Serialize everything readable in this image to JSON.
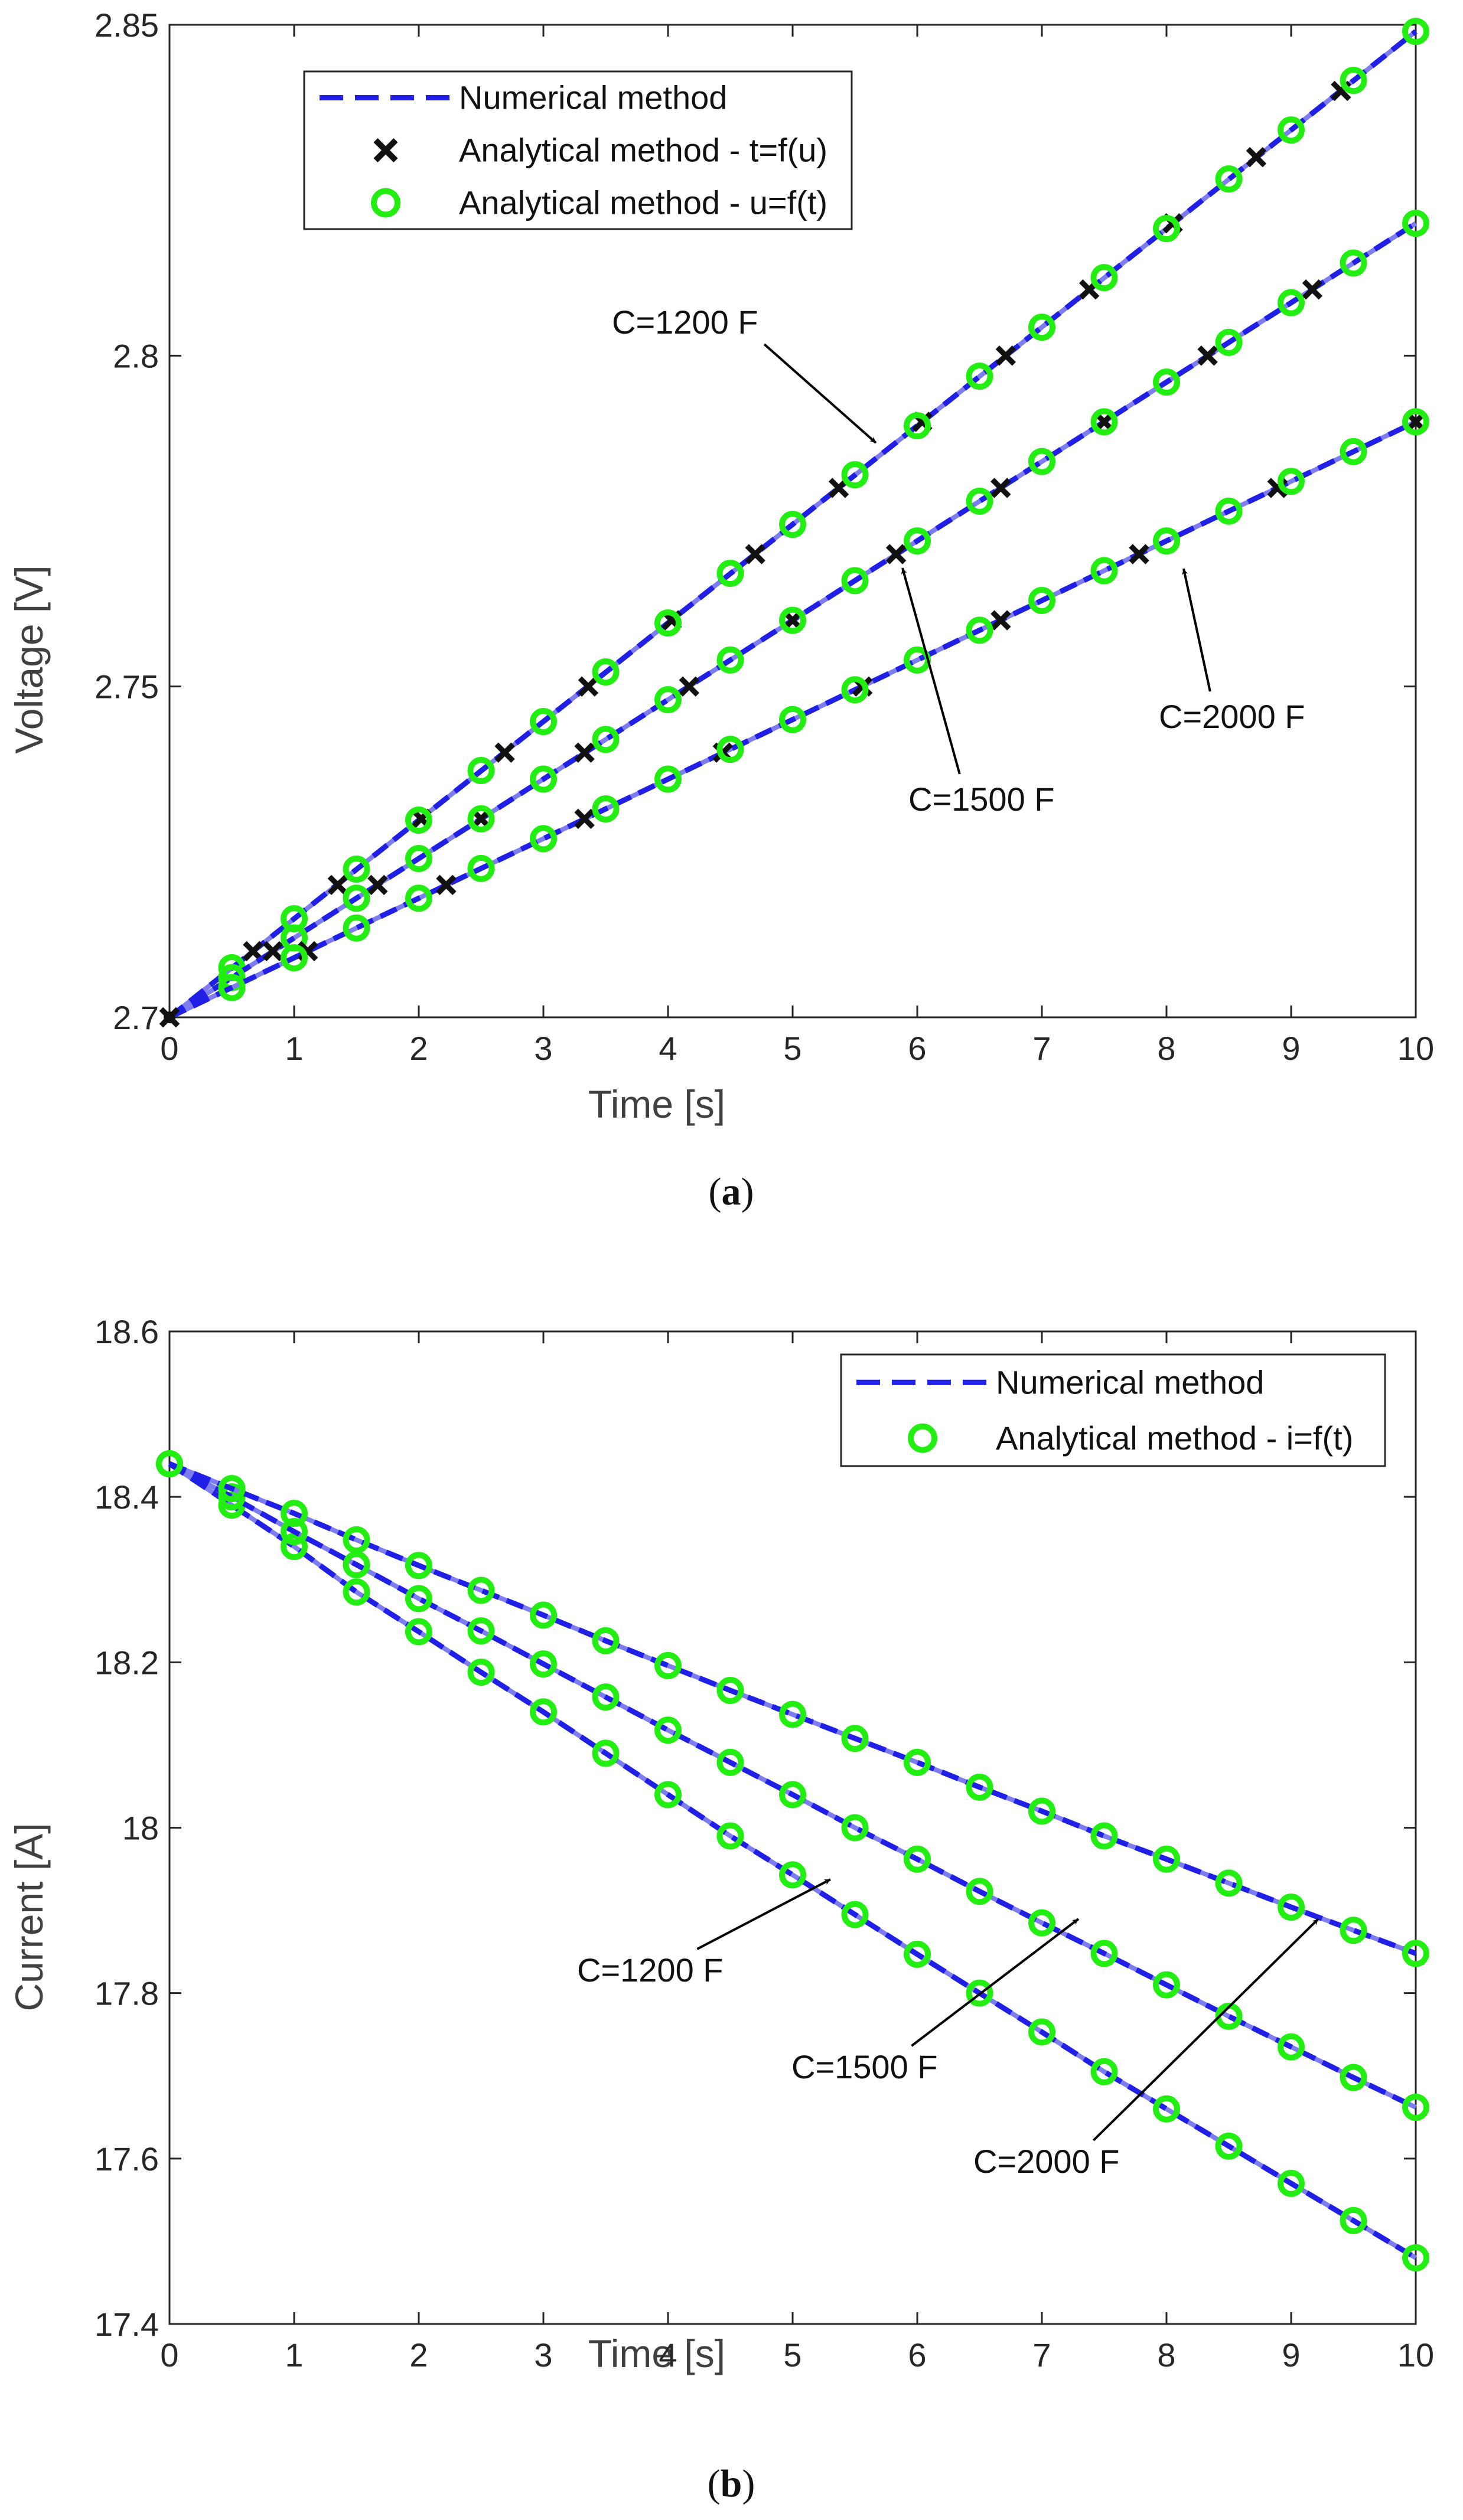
{
  "colors": {
    "numerical": "#1f1fe6",
    "analytical_t": "#111111",
    "analytical_u": "#22ee11",
    "axis": "#262626",
    "label": "#404040"
  },
  "chart_data": [
    {
      "type": "line",
      "panel_label": "a",
      "xlabel": "Time [s]",
      "ylabel": "Voltage [V]",
      "xlim": [
        0,
        10
      ],
      "ylim": [
        2.7,
        2.85
      ],
      "xticks": [
        0,
        1,
        2,
        3,
        4,
        5,
        6,
        7,
        8,
        9,
        10
      ],
      "yticks": [
        2.7,
        2.75,
        2.8,
        2.85
      ],
      "ytick_labels": [
        "2.7",
        "2.75",
        "2.8",
        "2.85"
      ],
      "grid": false,
      "legend_position": "top-left",
      "legend": [
        {
          "label": "Numerical method",
          "style": "dash"
        },
        {
          "label": "Analytical method - t=f(u)",
          "style": "cross"
        },
        {
          "label": "Analytical method - u=f(t)",
          "style": "circle"
        }
      ],
      "series": [
        {
          "name": "C=1200 F",
          "numerical": {
            "x": [
              0,
              10
            ],
            "y": [
              2.7,
              2.849
            ]
          },
          "analytical_t": {
            "x": [
              0,
              0.67,
              1.35,
              2.02,
              2.69,
              3.36,
              4.03,
              4.7,
              5.37,
              6.04,
              6.71,
              7.38,
              8.05,
              8.72,
              9.4
            ],
            "y": [
              2.7,
              2.71,
              2.72,
              2.73,
              2.74,
              2.75,
              2.76,
              2.77,
              2.78,
              2.79,
              2.8,
              2.81,
              2.82,
              2.83,
              2.84
            ]
          },
          "analytical_u": {
            "x": [
              0.5,
              1,
              1.5,
              2,
              2.5,
              3,
              3.5,
              4,
              4.5,
              5,
              5.5,
              6,
              6.5,
              7,
              7.5,
              8,
              8.5,
              9,
              9.5,
              10
            ],
            "y": [
              2.7075,
              2.7149,
              2.7224,
              2.7298,
              2.7373,
              2.7447,
              2.7522,
              2.7596,
              2.7671,
              2.7745,
              2.782,
              2.7894,
              2.7969,
              2.8043,
              2.8118,
              2.8192,
              2.8267,
              2.8341,
              2.8416,
              2.849
            ]
          }
        },
        {
          "name": "C=1500 F",
          "numerical": {
            "x": [
              0,
              10
            ],
            "y": [
              2.7,
              2.82
            ]
          },
          "analytical_t": {
            "x": [
              0,
              0.83,
              1.67,
              2.5,
              3.33,
              4.17,
              5.0,
              5.83,
              6.67,
              7.5,
              8.33,
              9.17
            ],
            "y": [
              2.7,
              2.71,
              2.72,
              2.73,
              2.74,
              2.75,
              2.76,
              2.77,
              2.78,
              2.79,
              2.8,
              2.81
            ]
          },
          "analytical_u": {
            "x": [
              0.5,
              1,
              1.5,
              2,
              2.5,
              3,
              3.5,
              4,
              4.5,
              5,
              5.5,
              6,
              6.5,
              7,
              7.5,
              8,
              8.5,
              9,
              9.5,
              10
            ],
            "y": [
              2.706,
              2.712,
              2.718,
              2.724,
              2.73,
              2.736,
              2.742,
              2.748,
              2.754,
              2.76,
              2.766,
              2.772,
              2.778,
              2.784,
              2.79,
              2.796,
              2.802,
              2.808,
              2.814,
              2.82
            ]
          }
        },
        {
          "name": "C=2000 F",
          "numerical": {
            "x": [
              0,
              10
            ],
            "y": [
              2.7,
              2.79
            ]
          },
          "analytical_t": {
            "x": [
              0,
              1.11,
              2.22,
              3.33,
              4.44,
              5.56,
              6.67,
              7.78,
              8.89,
              10.0
            ],
            "y": [
              2.7,
              2.71,
              2.72,
              2.73,
              2.74,
              2.75,
              2.76,
              2.77,
              2.78,
              2.79
            ]
          },
          "analytical_u": {
            "x": [
              0.5,
              1,
              1.5,
              2,
              2.5,
              3,
              3.5,
              4,
              4.5,
              5,
              5.5,
              6,
              6.5,
              7,
              7.5,
              8,
              8.5,
              9,
              9.5,
              10
            ],
            "y": [
              2.7045,
              2.709,
              2.7135,
              2.718,
              2.7225,
              2.727,
              2.7315,
              2.736,
              2.7405,
              2.745,
              2.7495,
              2.754,
              2.7585,
              2.763,
              2.7675,
              2.772,
              2.7765,
              2.781,
              2.7855,
              2.79
            ]
          }
        }
      ],
      "annotations": [
        {
          "text": "C=1200 F",
          "x": 5.8,
          "y": 2.787
        },
        {
          "text": "C=1500 F",
          "x": 5.9,
          "y": 2.7705
        },
        {
          "text": "C=2000 F",
          "x": 8.1,
          "y": 2.7705
        }
      ]
    },
    {
      "type": "line",
      "panel_label": "b",
      "xlabel": "Time [s]",
      "ylabel": "Current [A]",
      "xlim": [
        0,
        10
      ],
      "ylim": [
        17.4,
        18.6
      ],
      "xticks": [
        0,
        1,
        2,
        3,
        4,
        5,
        6,
        7,
        8,
        9,
        10
      ],
      "yticks": [
        17.4,
        17.6,
        17.8,
        18,
        18.2,
        18.4,
        18.6
      ],
      "ytick_labels": [
        "17.4",
        "17.6",
        "17.8",
        "18",
        "18.2",
        "18.4",
        "18.6"
      ],
      "grid": false,
      "legend_position": "top-right",
      "legend": [
        {
          "label": "Numerical method",
          "style": "dash"
        },
        {
          "label": "Analytical method - i=f(t)",
          "style": "circle"
        }
      ],
      "series": [
        {
          "name": "C=1200 F",
          "numerical": {
            "x": [
              0,
              0.5,
              1,
              1.5,
              2,
              2.5,
              3,
              3.5,
              4,
              4.5,
              5,
              5.5,
              6,
              6.5,
              7,
              7.5,
              8,
              8.5,
              9,
              9.5,
              10
            ],
            "y": [
              18.44,
              18.39,
              18.34,
              18.285,
              18.237,
              18.188,
              18.14,
              18.09,
              18.04,
              17.99,
              17.943,
              17.895,
              17.847,
              17.8,
              17.753,
              17.705,
              17.66,
              17.615,
              17.57,
              17.525,
              17.48
            ]
          },
          "analytical": {
            "x": [
              0,
              0.5,
              1,
              1.5,
              2,
              2.5,
              3,
              3.5,
              4,
              4.5,
              5,
              5.5,
              6,
              6.5,
              7,
              7.5,
              8,
              8.5,
              9,
              9.5,
              10
            ],
            "y": [
              18.44,
              18.39,
              18.34,
              18.285,
              18.237,
              18.188,
              18.14,
              18.09,
              18.04,
              17.99,
              17.943,
              17.895,
              17.847,
              17.8,
              17.753,
              17.705,
              17.66,
              17.615,
              17.57,
              17.525,
              17.48
            ]
          }
        },
        {
          "name": "C=1500 F",
          "numerical": {
            "x": [
              0,
              0.5,
              1,
              1.5,
              2,
              2.5,
              3,
              3.5,
              4,
              4.5,
              5,
              5.5,
              6,
              6.5,
              7,
              7.5,
              8,
              8.5,
              9,
              9.5,
              10
            ],
            "y": [
              18.44,
              18.4,
              18.358,
              18.318,
              18.277,
              18.238,
              18.198,
              18.158,
              18.118,
              18.079,
              18.04,
              18.0,
              17.962,
              17.923,
              17.885,
              17.848,
              17.81,
              17.772,
              17.735,
              17.698,
              17.662
            ]
          },
          "analytical": {
            "x": [
              0,
              0.5,
              1,
              1.5,
              2,
              2.5,
              3,
              3.5,
              4,
              4.5,
              5,
              5.5,
              6,
              6.5,
              7,
              7.5,
              8,
              8.5,
              9,
              9.5,
              10
            ],
            "y": [
              18.44,
              18.4,
              18.358,
              18.318,
              18.277,
              18.238,
              18.198,
              18.158,
              18.118,
              18.079,
              18.04,
              18.0,
              17.962,
              17.923,
              17.885,
              17.848,
              17.81,
              17.772,
              17.735,
              17.698,
              17.662
            ]
          }
        },
        {
          "name": "C=2000 F",
          "numerical": {
            "x": [
              0,
              0.5,
              1,
              1.5,
              2,
              2.5,
              3,
              3.5,
              4,
              4.5,
              5,
              5.5,
              6,
              6.5,
              7,
              7.5,
              8,
              8.5,
              9,
              9.5,
              10
            ],
            "y": [
              18.44,
              18.41,
              18.38,
              18.348,
              18.317,
              18.287,
              18.257,
              18.226,
              18.196,
              18.166,
              18.137,
              18.108,
              18.079,
              18.049,
              18.02,
              17.99,
              17.962,
              17.933,
              17.904,
              17.876,
              17.848
            ]
          },
          "analytical": {
            "x": [
              0,
              0.5,
              1,
              1.5,
              2,
              2.5,
              3,
              3.5,
              4,
              4.5,
              5,
              5.5,
              6,
              6.5,
              7,
              7.5,
              8,
              8.5,
              9,
              9.5,
              10
            ],
            "y": [
              18.44,
              18.41,
              18.38,
              18.348,
              18.317,
              18.287,
              18.257,
              18.226,
              18.196,
              18.166,
              18.137,
              18.108,
              18.079,
              18.049,
              18.02,
              17.99,
              17.962,
              17.933,
              17.904,
              17.876,
              17.848
            ]
          }
        }
      ],
      "annotations": [
        {
          "text": "C=1200 F",
          "x": 5.3,
          "y": 17.91
        },
        {
          "text": "C=1500 F",
          "x": 7.2,
          "y": 17.88
        },
        {
          "text": "C=2000 F",
          "x": 9.3,
          "y": 17.88
        }
      ]
    }
  ]
}
